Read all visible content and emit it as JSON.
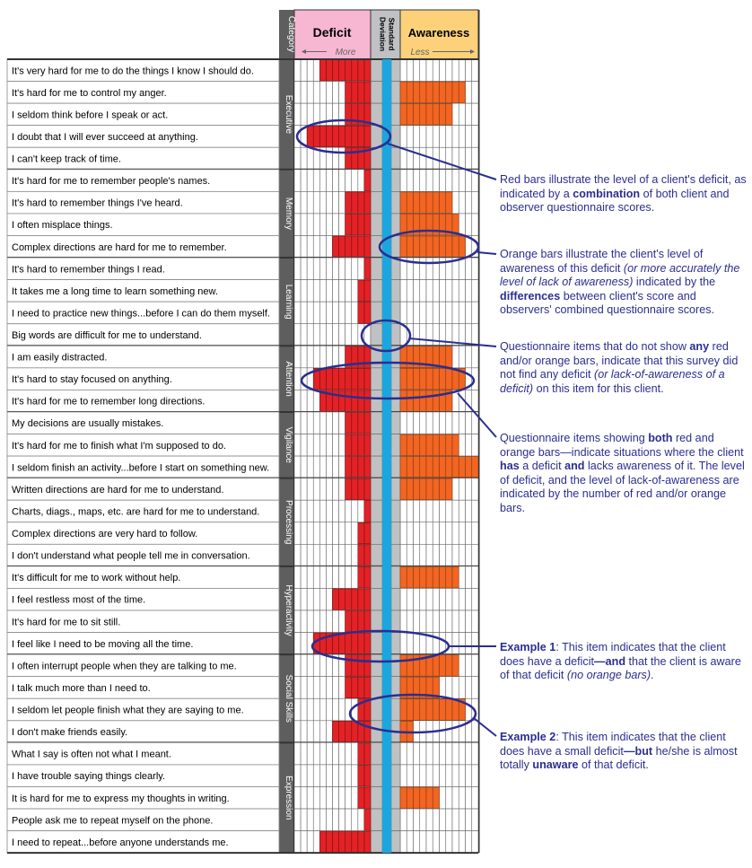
{
  "chart_data": {
    "type": "table",
    "columns": {
      "category": "Category",
      "deficit": "Deficit",
      "deficit_sub": "More",
      "sd": "Standard Deviation",
      "awareness": "Awareness",
      "awareness_sub": "Less"
    },
    "deficit_scale_max": 12,
    "awareness_scale_max": 12,
    "colors": {
      "deficit": "#e32226",
      "awareness": "#f26522",
      "sd": "#bfc1c3",
      "midline": "#1aa7e0",
      "deficit_header": "#f7b6d2",
      "awareness_header": "#fcd17a",
      "category_band": "#5e5e5e",
      "annotation": "#2b2e8f"
    },
    "categories": [
      {
        "name": "Executive",
        "items": [
          {
            "text": "It's very hard for me to do the things I know I should do.",
            "deficit": 8,
            "awareness": 0
          },
          {
            "text": "It's hard for me to control my anger.",
            "deficit": 4,
            "awareness": 10
          },
          {
            "text": "I seldom think before I speak or act.",
            "deficit": 4,
            "awareness": 8
          },
          {
            "text": "I doubt that I will ever succeed at anything.",
            "deficit": 10,
            "awareness": 0
          },
          {
            "text": "I can't keep track of time.",
            "deficit": 4,
            "awareness": 0
          }
        ]
      },
      {
        "name": "Memory",
        "items": [
          {
            "text": "It's hard for me to remember people's names.",
            "deficit": 1,
            "awareness": 0
          },
          {
            "text": "It's hard to remember things I've heard.",
            "deficit": 4,
            "awareness": 8
          },
          {
            "text": "I often misplace things.",
            "deficit": 4,
            "awareness": 9
          },
          {
            "text": "Complex directions are hard for me to remember.",
            "deficit": 6,
            "awareness": 10
          }
        ]
      },
      {
        "name": "Learning",
        "items": [
          {
            "text": "It's hard to remember things I read.",
            "deficit": 1,
            "awareness": 0
          },
          {
            "text": "It takes me a long time to learn something new.",
            "deficit": 2,
            "awareness": 0
          },
          {
            "text": "I need to practice new things...before I can do them myself.",
            "deficit": 2,
            "awareness": 0
          },
          {
            "text": "Big words are difficult for me to understand.",
            "deficit": 0,
            "awareness": 0
          }
        ]
      },
      {
        "name": "Attention",
        "items": [
          {
            "text": "I am easily distracted.",
            "deficit": 4,
            "awareness": 8
          },
          {
            "text": "It's hard to stay focused on anything.",
            "deficit": 9,
            "awareness": 10
          },
          {
            "text": "It's hard for me to remember long directions.",
            "deficit": 8,
            "awareness": 8
          }
        ]
      },
      {
        "name": "Vigilance",
        "items": [
          {
            "text": "My decisions are usually mistakes.",
            "deficit": 4,
            "awareness": 0
          },
          {
            "text": "It's hard for me to finish what I'm supposed to do.",
            "deficit": 4,
            "awareness": 9
          },
          {
            "text": "I seldom finish an activity...before I start on something new.",
            "deficit": 4,
            "awareness": 12
          }
        ]
      },
      {
        "name": "Processing",
        "items": [
          {
            "text": "Written directions are hard for me to understand.",
            "deficit": 4,
            "awareness": 8
          },
          {
            "text": "Charts, diags., maps, etc. are hard for me to understand.",
            "deficit": 1,
            "awareness": 0
          },
          {
            "text": "Complex directions are very hard to follow.",
            "deficit": 2,
            "awareness": 0
          },
          {
            "text": "I don't understand what people tell me in conversation.",
            "deficit": 2,
            "awareness": 0
          }
        ]
      },
      {
        "name": "Hyperactivity",
        "items": [
          {
            "text": "It's difficult for me to work without help.",
            "deficit": 2,
            "awareness": 9
          },
          {
            "text": "I feel restless most of the time.",
            "deficit": 6,
            "awareness": 0
          },
          {
            "text": "It's hard for me to sit still.",
            "deficit": 4,
            "awareness": 0
          },
          {
            "text": "I feel like I need to be moving all the time.",
            "deficit": 9,
            "awareness": 0
          }
        ]
      },
      {
        "name": "Social Skills",
        "items": [
          {
            "text": "I often interrupt people when they are talking to me.",
            "deficit": 4,
            "awareness": 9
          },
          {
            "text": "I talk much more than I need to.",
            "deficit": 4,
            "awareness": 6
          },
          {
            "text": "I seldom let people finish what they are saying to me.",
            "deficit": 2,
            "awareness": 10
          },
          {
            "text": "I don't make friends easily.",
            "deficit": 6,
            "awareness": 2
          }
        ]
      },
      {
        "name": "Expression",
        "items": [
          {
            "text": "What I say is often not what I meant.",
            "deficit": 2,
            "awareness": 0
          },
          {
            "text": "I have trouble saying things clearly.",
            "deficit": 2,
            "awareness": 0
          },
          {
            "text": "It is hard for me to express my thoughts in writing.",
            "deficit": 2,
            "awareness": 6
          },
          {
            "text": "People ask me to repeat myself on the phone.",
            "deficit": 1,
            "awareness": 0
          },
          {
            "text": "I need to repeat...before anyone understands me.",
            "deficit": 8,
            "awareness": 0
          }
        ]
      }
    ]
  },
  "annotations": {
    "red_bars": {
      "p1": "Red bars illustrate the level of a client's deficit, as indicated by a ",
      "b1": "combination",
      "p2": " of both client and observer questionnaire scores."
    },
    "orange_bars": {
      "p1": "Orange bars illustrate the client's level of awareness of this deficit ",
      "i1": "(or more accurately the level of lack of awareness)",
      "p2": " indicated by the ",
      "b1": "differences",
      "p3": " between client's score and observers' combined questionnaire scores."
    },
    "no_bars": {
      "p1": "Questionnaire items that do not show ",
      "b1": "any",
      "p2": " red and/or orange bars, indicate that this survey did not find any deficit ",
      "i1": "(or lack-of-awareness of a deficit)",
      "p3": " on this item for this client."
    },
    "both_bars": {
      "p1": "Questionnaire items showing ",
      "b1": "both",
      "p2": " red and orange bars—indicate situations where the client ",
      "b2": "has",
      "p3": " a deficit ",
      "b3": "and",
      "p4": " lacks awareness of it. The level of deficit, and the level of lack-of-awareness are indicated by the number of red and/or orange bars."
    },
    "example1": {
      "b1": "Example 1",
      "p1": ": This item indicates that the client does have a deficit",
      "b2": "—and",
      "p2": " that the client is aware of that deficit ",
      "i1": "(no orange bars)",
      "p3": "."
    },
    "example2": {
      "b1": "Example 2",
      "p1": ": This item indicates that the client does have a small deficit",
      "b2": "—but",
      "p2": " he/she is almost totally ",
      "b3": "unaware",
      "p3": " of that deficit."
    }
  }
}
